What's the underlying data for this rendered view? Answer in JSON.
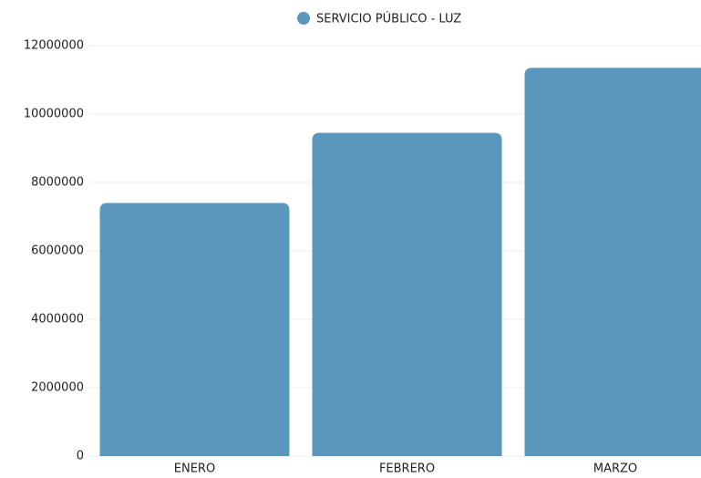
{
  "chart_data": {
    "type": "bar",
    "categories": [
      "ENERO",
      "FEBRERO",
      "MARZO"
    ],
    "series": [
      {
        "name": "SERVICIO PÚBLICO - LUZ",
        "color": "#5b96bd",
        "values": [
          7400000,
          9450000,
          11350000
        ]
      }
    ],
    "ylim": [
      0,
      12000000
    ],
    "yticks": [
      0,
      2000000,
      4000000,
      6000000,
      8000000,
      10000000,
      12000000
    ],
    "grid": true,
    "legend": "top"
  }
}
